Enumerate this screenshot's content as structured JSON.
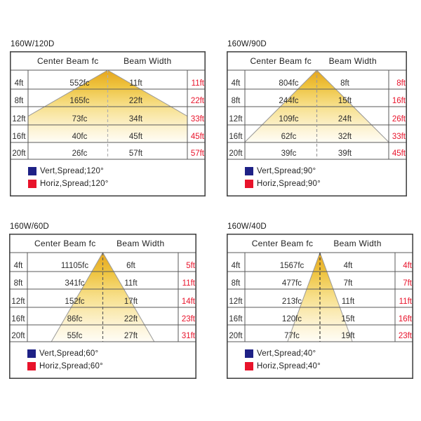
{
  "colors": {
    "accent_red": "#e8132b",
    "legend_blue": "#1e2186",
    "cone_gold": "#e6a51d",
    "border": "#474747"
  },
  "table_headers": {
    "col1": "Center Beam fc",
    "col2": "Beam Width"
  },
  "panels": [
    {
      "title": "160W/120D",
      "beam_angle_deg": 120,
      "legend": [
        {
          "color_key": "legend_blue",
          "label": "Vert,Spread;120°"
        },
        {
          "color_key": "accent_red",
          "label": "Horiz,Spread;120°"
        }
      ],
      "rows": [
        {
          "distance": "4ft",
          "center_beam": "552fc",
          "beam_width": "11ft",
          "horiz_width": "11ft"
        },
        {
          "distance": "8ft",
          "center_beam": "165fc",
          "beam_width": "22ft",
          "horiz_width": "22ft"
        },
        {
          "distance": "12ft",
          "center_beam": "73fc",
          "beam_width": "34ft",
          "horiz_width": "33ft"
        },
        {
          "distance": "16ft",
          "center_beam": "40fc",
          "beam_width": "45ft",
          "horiz_width": "45ft"
        },
        {
          "distance": "20ft",
          "center_beam": "26fc",
          "beam_width": "57ft",
          "horiz_width": "57ft"
        }
      ]
    },
    {
      "title": "160W/90D",
      "beam_angle_deg": 90,
      "legend": [
        {
          "color_key": "legend_blue",
          "label": "Vert,Spread;90°"
        },
        {
          "color_key": "accent_red",
          "label": "Horiz,Spread;90°"
        }
      ],
      "rows": [
        {
          "distance": "4ft",
          "center_beam": "804fc",
          "beam_width": "8ft",
          "horiz_width": "8ft"
        },
        {
          "distance": "8ft",
          "center_beam": "244fc",
          "beam_width": "15ft",
          "horiz_width": "16ft"
        },
        {
          "distance": "12ft",
          "center_beam": "109fc",
          "beam_width": "24ft",
          "horiz_width": "26ft"
        },
        {
          "distance": "16ft",
          "center_beam": "62fc",
          "beam_width": "32ft",
          "horiz_width": "33ft"
        },
        {
          "distance": "20ft",
          "center_beam": "39fc",
          "beam_width": "39ft",
          "horiz_width": "45ft"
        }
      ]
    },
    {
      "title": "160W/60D",
      "beam_angle_deg": 60,
      "legend": [
        {
          "color_key": "legend_blue",
          "label": "Vert,Spread;60°"
        },
        {
          "color_key": "accent_red",
          "label": "Horiz,Spread;60°"
        }
      ],
      "rows": [
        {
          "distance": "4ft",
          "center_beam": "11105fc",
          "beam_width": "6ft",
          "horiz_width": "5ft"
        },
        {
          "distance": "8ft",
          "center_beam": "341fc",
          "beam_width": "11ft",
          "horiz_width": "11ft"
        },
        {
          "distance": "12ft",
          "center_beam": "152fc",
          "beam_width": "17ft",
          "horiz_width": "14ft"
        },
        {
          "distance": "16ft",
          "center_beam": "86fc",
          "beam_width": "22ft",
          "horiz_width": "23ft"
        },
        {
          "distance": "20ft",
          "center_beam": "55fc",
          "beam_width": "27ft",
          "horiz_width": "31ft"
        }
      ]
    },
    {
      "title": "160W/40D",
      "beam_angle_deg": 40,
      "legend": [
        {
          "color_key": "legend_blue",
          "label": "Vert,Spread;40°"
        },
        {
          "color_key": "accent_red",
          "label": "Horiz,Spread;40°"
        }
      ],
      "rows": [
        {
          "distance": "4ft",
          "center_beam": "1567fc",
          "beam_width": "4ft",
          "horiz_width": "4ft"
        },
        {
          "distance": "8ft",
          "center_beam": "477fc",
          "beam_width": "7ft",
          "horiz_width": "7ft"
        },
        {
          "distance": "12ft",
          "center_beam": "213fc",
          "beam_width": "11ft",
          "horiz_width": "11ft"
        },
        {
          "distance": "16ft",
          "center_beam": "120fc",
          "beam_width": "15ft",
          "horiz_width": "16ft"
        },
        {
          "distance": "20ft",
          "center_beam": "77fc",
          "beam_width": "19ft",
          "horiz_width": "23ft"
        }
      ]
    }
  ],
  "chart_data": [
    {
      "type": "table",
      "title": "160W/120D",
      "distances_ft": [
        4,
        8,
        12,
        16,
        20
      ],
      "center_beam_fc": [
        552,
        165,
        73,
        40,
        26
      ],
      "vert_beam_width_ft": [
        11,
        22,
        34,
        45,
        57
      ],
      "horiz_beam_width_ft": [
        11,
        22,
        33,
        45,
        57
      ],
      "vert_spread_deg": 120,
      "horiz_spread_deg": 120
    },
    {
      "type": "table",
      "title": "160W/90D",
      "distances_ft": [
        4,
        8,
        12,
        16,
        20
      ],
      "center_beam_fc": [
        804,
        244,
        109,
        62,
        39
      ],
      "vert_beam_width_ft": [
        8,
        15,
        24,
        32,
        39
      ],
      "horiz_beam_width_ft": [
        8,
        16,
        26,
        33,
        45
      ],
      "vert_spread_deg": 90,
      "horiz_spread_deg": 90
    },
    {
      "type": "table",
      "title": "160W/60D",
      "distances_ft": [
        4,
        8,
        12,
        16,
        20
      ],
      "center_beam_fc": [
        11105,
        341,
        152,
        86,
        55
      ],
      "vert_beam_width_ft": [
        6,
        11,
        17,
        22,
        27
      ],
      "horiz_beam_width_ft": [
        5,
        11,
        14,
        23,
        31
      ],
      "vert_spread_deg": 60,
      "horiz_spread_deg": 60
    },
    {
      "type": "table",
      "title": "160W/40D",
      "distances_ft": [
        4,
        8,
        12,
        16,
        20
      ],
      "center_beam_fc": [
        1567,
        477,
        213,
        120,
        77
      ],
      "vert_beam_width_ft": [
        4,
        7,
        11,
        15,
        19
      ],
      "horiz_beam_width_ft": [
        4,
        7,
        11,
        16,
        23
      ],
      "vert_spread_deg": 40,
      "horiz_spread_deg": 40
    }
  ]
}
